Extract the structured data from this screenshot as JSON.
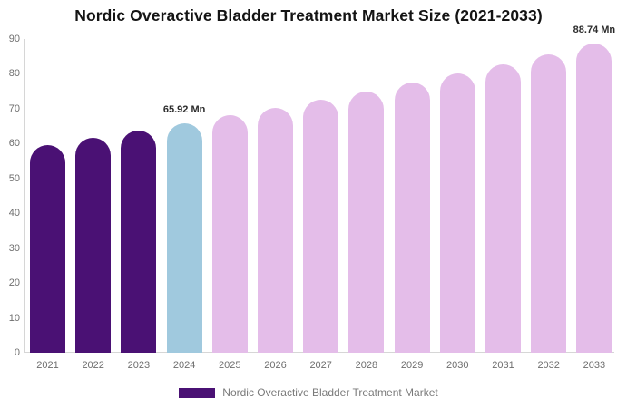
{
  "title": "Nordic Overactive Bladder Treatment Market Size (2021-2033)",
  "legend": {
    "label": "Nordic Overactive Bladder Treatment Market",
    "swatch_color": "#4A1174"
  },
  "colors": {
    "historical_bar": "#4A1174",
    "current_year_bar": "#A0C9DE",
    "forecast_bar": "#E4BDE9",
    "axis_line": "#d6d6d6",
    "tick_text": "#6e6e6e",
    "title_text": "#141414"
  },
  "chart_data": {
    "type": "bar",
    "title": "Nordic Overactive Bladder Treatment Market Size (2021-2033)",
    "xlabel": "",
    "ylabel": "",
    "unit": "Mn",
    "categories": [
      "2021",
      "2022",
      "2023",
      "2024",
      "2025",
      "2026",
      "2027",
      "2028",
      "2029",
      "2030",
      "2031",
      "2032",
      "2033"
    ],
    "values": [
      59.6,
      61.6,
      63.7,
      65.92,
      68.1,
      70.3,
      72.6,
      75.0,
      77.5,
      80.1,
      82.8,
      85.7,
      88.74
    ],
    "bar_roles": [
      "historical",
      "historical",
      "historical",
      "current",
      "forecast",
      "forecast",
      "forecast",
      "forecast",
      "forecast",
      "forecast",
      "forecast",
      "forecast",
      "forecast"
    ],
    "palette": {
      "historical": "#4A1174",
      "current": "#A0C9DE",
      "forecast": "#E4BDE9"
    },
    "ylim": [
      0,
      90
    ],
    "yticks": [
      0,
      10,
      20,
      30,
      40,
      50,
      60,
      70,
      80,
      90
    ],
    "grid": false,
    "legend_position": "bottom",
    "legend_entries": [
      "Nordic Overactive Bladder Treatment Market"
    ],
    "annotations": [
      {
        "category": "2024",
        "text": "65.92 Mn"
      },
      {
        "category": "2033",
        "text": "88.74 Mn"
      }
    ]
  }
}
